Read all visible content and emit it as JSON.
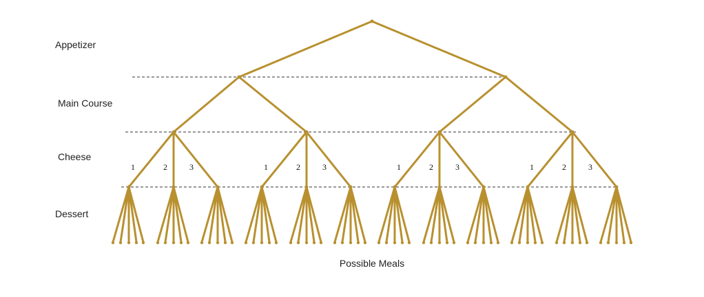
{
  "levels": {
    "appetizer": "Appetizer",
    "main_course": "Main Course",
    "cheese": "Cheese",
    "dessert": "Dessert"
  },
  "caption": "Possible Meals",
  "branch_labels": [
    "1",
    "2",
    "3"
  ],
  "tree": {
    "appetizer_choices": 1,
    "main_course_choices": 2,
    "cheese_choices": 2,
    "dessert_choices": 3,
    "outcomes_per_dessert": 5
  },
  "colors": {
    "branch": "#B8902F",
    "guide_line": "#333333",
    "text": "#222222"
  }
}
